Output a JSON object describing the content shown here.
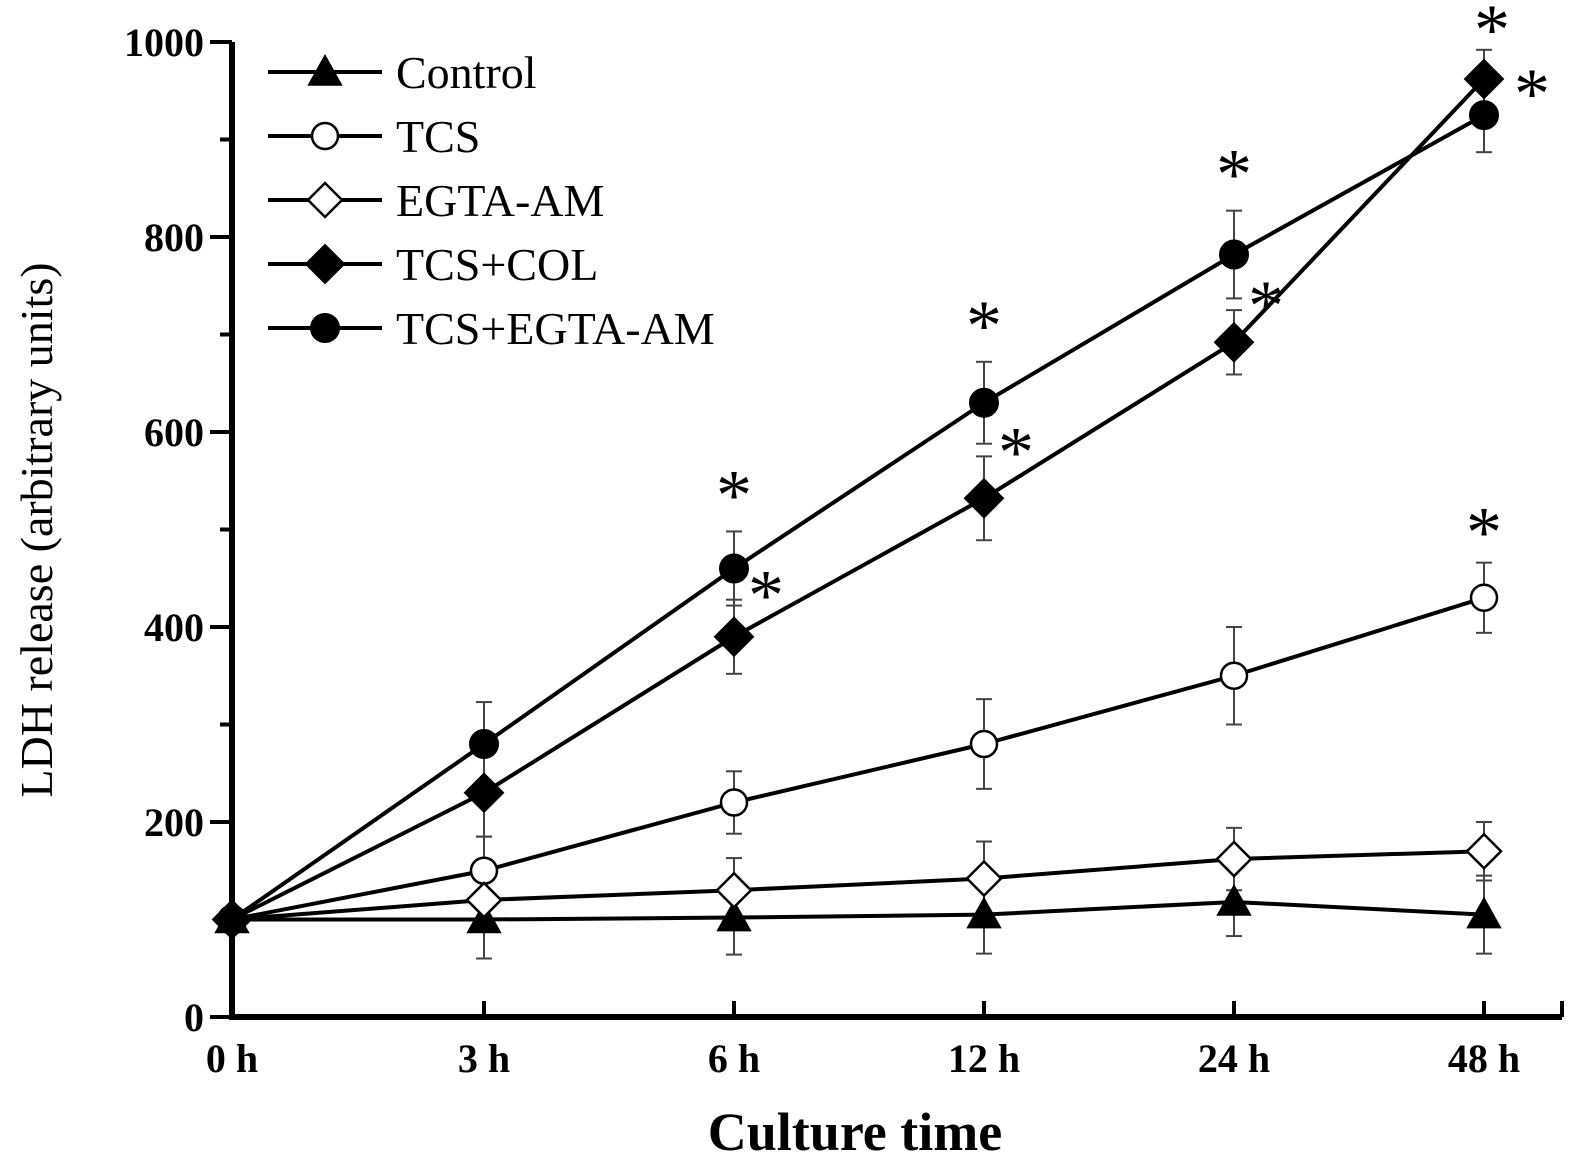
{
  "chart_data": {
    "type": "line",
    "title": "",
    "xlabel": "Culture time",
    "ylabel": "LDH release (arbitrary units)",
    "categories": [
      "0 h",
      "3 h",
      "6 h",
      "12 h",
      "24 h",
      "48 h"
    ],
    "ylim": [
      0,
      1000
    ],
    "yticks": [
      0,
      200,
      400,
      600,
      800,
      1000
    ],
    "grid": false,
    "legend": "top-left",
    "significance_marker": "*",
    "series": [
      {
        "name": "Control",
        "marker": "filled-triangle",
        "values": [
          100,
          100,
          102,
          105,
          118,
          105
        ],
        "errors": [
          0,
          40,
          38,
          40,
          35,
          40
        ],
        "significant": [
          false,
          false,
          false,
          false,
          false,
          false
        ]
      },
      {
        "name": "TCS",
        "marker": "open-circle",
        "values": [
          100,
          150,
          220,
          280,
          350,
          430
        ],
        "errors": [
          0,
          35,
          32,
          46,
          50,
          36
        ],
        "significant": [
          false,
          false,
          false,
          false,
          false,
          true
        ]
      },
      {
        "name": "EGTA-AM",
        "marker": "open-diamond",
        "values": [
          100,
          120,
          130,
          142,
          162,
          170
        ],
        "errors": [
          0,
          30,
          33,
          38,
          32,
          30
        ],
        "significant": [
          false,
          false,
          false,
          false,
          false,
          false
        ]
      },
      {
        "name": "TCS+COL",
        "marker": "filled-diamond",
        "values": [
          100,
          230,
          390,
          532,
          692,
          962
        ],
        "errors": [
          0,
          45,
          38,
          43,
          33,
          30
        ],
        "significant": [
          false,
          false,
          true,
          true,
          true,
          true
        ]
      },
      {
        "name": "TCS+EGTA-AM",
        "marker": "filled-circle",
        "values": [
          100,
          280,
          460,
          630,
          782,
          925
        ],
        "errors": [
          0,
          43,
          38,
          42,
          45,
          38
        ],
        "significant": [
          false,
          false,
          true,
          true,
          true,
          true
        ]
      }
    ]
  }
}
